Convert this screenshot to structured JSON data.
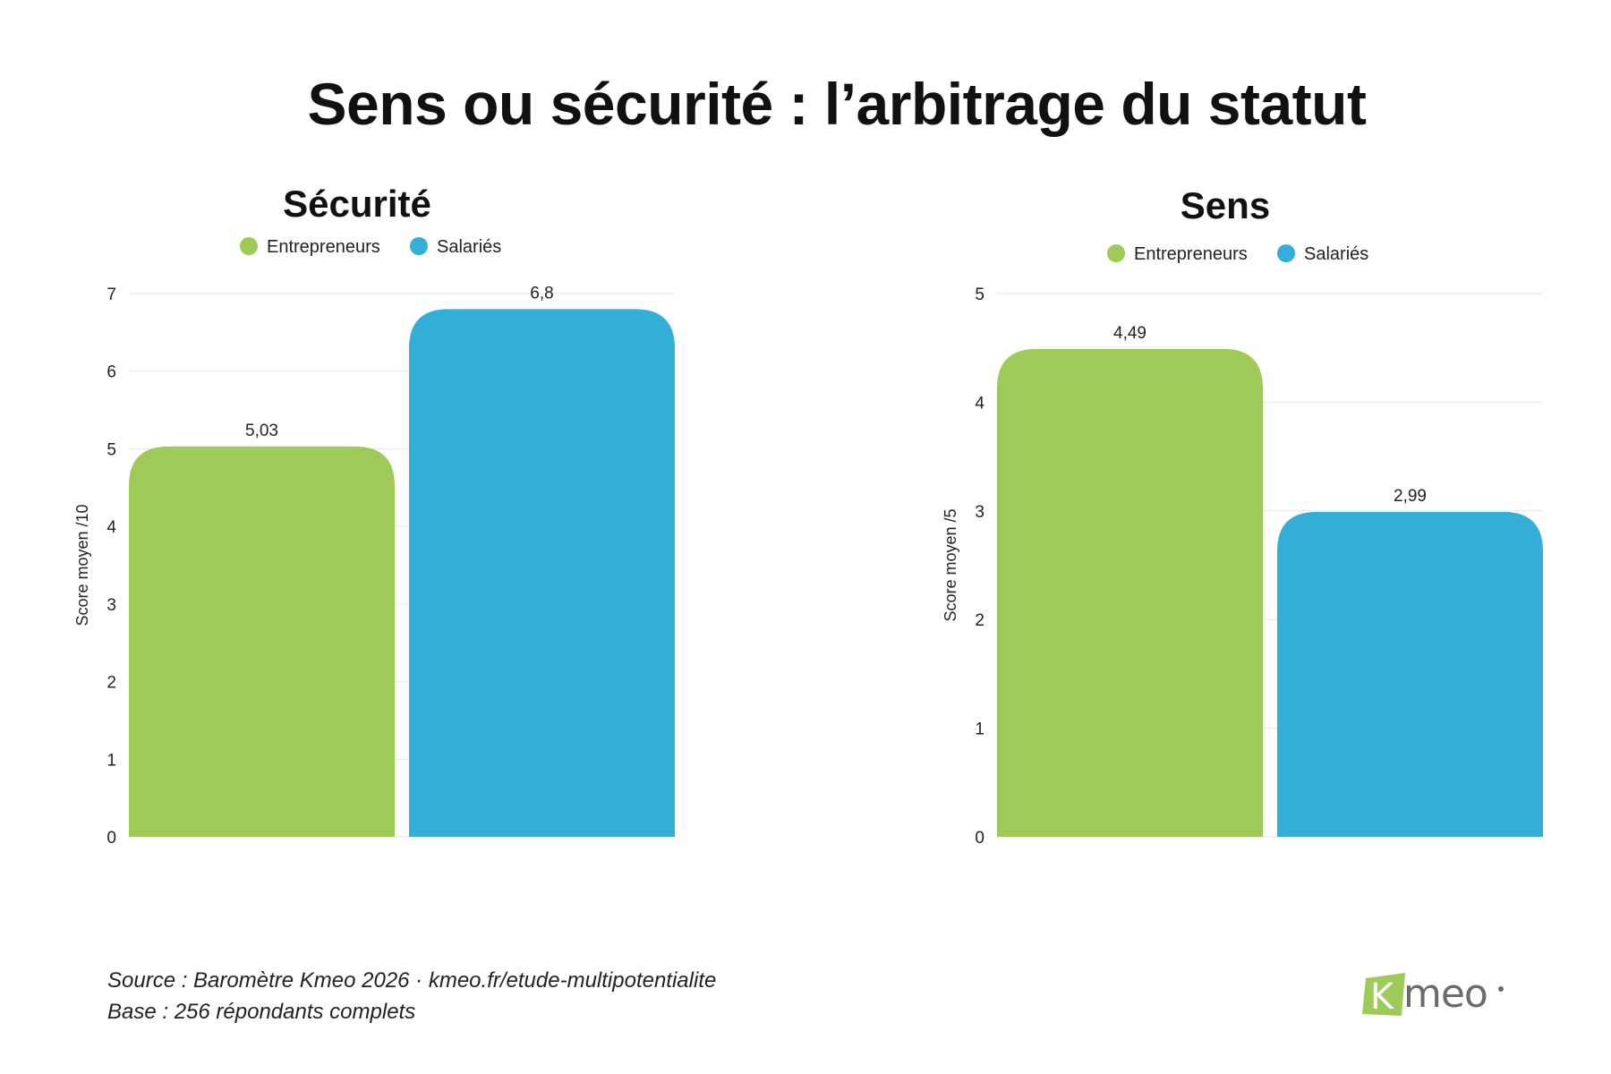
{
  "title": "Sens ou sécurité : l’arbitrage du statut",
  "colors": {
    "entrepreneurs": "#9ecb57",
    "salaries": "#33aed6",
    "grid": "#e6e6e6",
    "text": "#222222"
  },
  "chart_data": [
    {
      "type": "bar",
      "title": "Sécurité",
      "categories": [
        "Entrepreneurs",
        "Salariés"
      ],
      "values": [
        5.03,
        6.8
      ],
      "value_labels": [
        "5,03",
        "6,8"
      ],
      "ylabel": "Score moyen /10",
      "ylim": [
        0,
        7
      ],
      "yticks": [
        "0",
        "1",
        "2",
        "3",
        "4",
        "5",
        "6",
        "7"
      ],
      "legend": [
        "Entrepreneurs",
        "Salariés"
      ],
      "legend_position": "top",
      "grid": true
    },
    {
      "type": "bar",
      "title": "Sens",
      "categories": [
        "Entrepreneurs",
        "Salariés"
      ],
      "values": [
        4.49,
        2.99
      ],
      "value_labels": [
        "4,49",
        "2,99"
      ],
      "ylabel": "Score moyen /5",
      "ylim": [
        0,
        5
      ],
      "yticks": [
        "0",
        "1",
        "2",
        "3",
        "4",
        "5"
      ],
      "legend": [
        "Entrepreneurs",
        "Salariés"
      ],
      "legend_position": "top",
      "grid": true
    }
  ],
  "source": {
    "line1": "Source : Baromètre Kmeo 2026 · kmeo.fr/etude-multipotentialite",
    "line2": "Base : 256 répondants complets"
  },
  "logo": {
    "letter": "K",
    "text": "meo"
  }
}
